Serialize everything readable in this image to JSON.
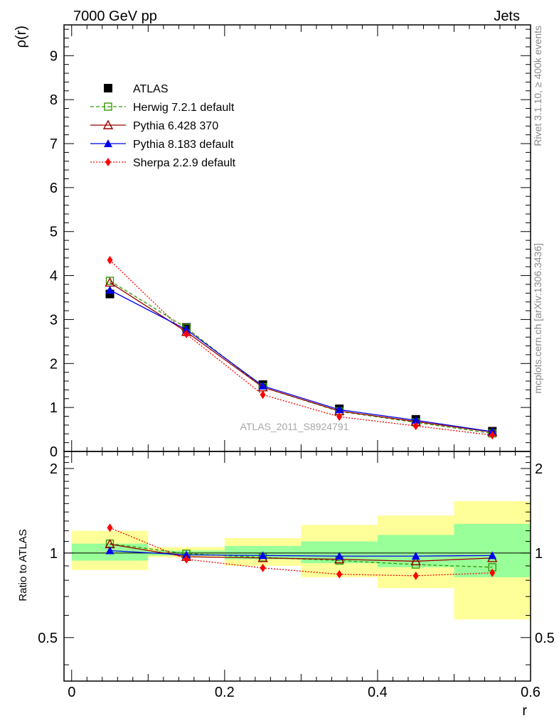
{
  "header": {
    "left": "7000 GeV pp",
    "right": "Jets"
  },
  "side_text": {
    "rivet": "Rivet 3.1.10, ≥ 400k events",
    "mcplots": "mcplots.cern.ch [arXiv:1306.3436]"
  },
  "chart_data": [
    {
      "type": "scatter",
      "panel": "main",
      "ylabel": "ρ(r)",
      "xlabel": "",
      "watermark": "ATLAS_2011_S8924791",
      "xlim": [
        -0.01,
        0.6
      ],
      "ylim": [
        0,
        9.7
      ],
      "yticks": [
        0,
        1,
        2,
        3,
        4,
        5,
        6,
        7,
        8,
        9
      ],
      "ytick_labels": [
        "0",
        "1",
        "2",
        "3",
        "4",
        "5",
        "6",
        "7",
        "8",
        "9"
      ],
      "x": [
        0.05,
        0.15,
        0.25,
        0.35,
        0.45,
        0.55
      ],
      "legend_position": "top-left",
      "series": [
        {
          "name": "ATLAS",
          "color": "#000000",
          "marker": "square-filled",
          "line": "none",
          "values": [
            3.58,
            2.82,
            1.52,
            0.97,
            0.73,
            0.46
          ]
        },
        {
          "name": "Herwig 7.2.1 default",
          "color": "#339900",
          "marker": "square-open",
          "line": "dashed",
          "values": [
            3.88,
            2.81,
            1.46,
            0.91,
            0.66,
            0.41
          ]
        },
        {
          "name": "Pythia 6.428 370",
          "color": "#990000",
          "marker": "triangle-open",
          "line": "solid",
          "values": [
            3.84,
            2.72,
            1.46,
            0.92,
            0.68,
            0.44
          ]
        },
        {
          "name": "Pythia 8.183 default",
          "color": "#0000ee",
          "marker": "triangle-filled",
          "line": "solid",
          "values": [
            3.67,
            2.77,
            1.49,
            0.95,
            0.71,
            0.45
          ]
        },
        {
          "name": "Sherpa 2.2.9 default",
          "color": "#ff0000",
          "marker": "diamond-filled",
          "line": "dotted",
          "values": [
            4.35,
            2.67,
            1.29,
            0.79,
            0.58,
            0.37
          ]
        }
      ]
    },
    {
      "type": "scatter",
      "panel": "ratio",
      "ylabel": "Ratio to ATLAS",
      "xlabel": "r",
      "xlim": [
        -0.01,
        0.6
      ],
      "ylim": [
        0.35,
        2.3
      ],
      "yscale": "log",
      "yticks": [
        0.5,
        1,
        2
      ],
      "ytick_labels": [
        "0.5",
        "1",
        "2"
      ],
      "xticks": [
        0,
        0.2,
        0.4,
        0.6
      ],
      "xtick_labels": [
        "0",
        "0.2",
        "0.4",
        "0.6"
      ],
      "x": [
        0.05,
        0.15,
        0.25,
        0.35,
        0.45,
        0.55
      ],
      "bins": [
        [
          0.0,
          0.1
        ],
        [
          0.1,
          0.2
        ],
        [
          0.2,
          0.3
        ],
        [
          0.3,
          0.4
        ],
        [
          0.4,
          0.5
        ],
        [
          0.5,
          0.6
        ]
      ],
      "band_inner": [
        [
          0.94,
          1.08
        ],
        [
          0.98,
          1.02
        ],
        [
          0.95,
          1.06
        ],
        [
          0.92,
          1.1
        ],
        [
          0.89,
          1.16
        ],
        [
          0.82,
          1.27
        ]
      ],
      "band_outer": [
        [
          0.87,
          1.2
        ],
        [
          0.965,
          1.05
        ],
        [
          0.9,
          1.13
        ],
        [
          0.82,
          1.26
        ],
        [
          0.75,
          1.36
        ],
        [
          0.58,
          1.53
        ]
      ],
      "band_inner_color": "#99ff99",
      "band_outer_color": "#ffff99",
      "series": [
        {
          "name": "Herwig 7.2.1 default",
          "color": "#339900",
          "marker": "square-open",
          "line": "dashed",
          "values": [
            1.08,
            0.995,
            0.965,
            0.94,
            0.91,
            0.89
          ]
        },
        {
          "name": "Pythia 6.428 370",
          "color": "#990000",
          "marker": "triangle-open",
          "line": "solid",
          "values": [
            1.075,
            0.97,
            0.96,
            0.95,
            0.935,
            0.96
          ]
        },
        {
          "name": "Pythia 8.183 default",
          "color": "#0000ee",
          "marker": "triangle-filled",
          "line": "solid",
          "values": [
            1.02,
            0.985,
            0.98,
            0.975,
            0.975,
            0.98
          ]
        },
        {
          "name": "Sherpa 2.2.9 default",
          "color": "#ff0000",
          "marker": "diamond-filled",
          "line": "dotted",
          "values": [
            1.23,
            0.95,
            0.885,
            0.84,
            0.83,
            0.85
          ]
        }
      ]
    }
  ]
}
